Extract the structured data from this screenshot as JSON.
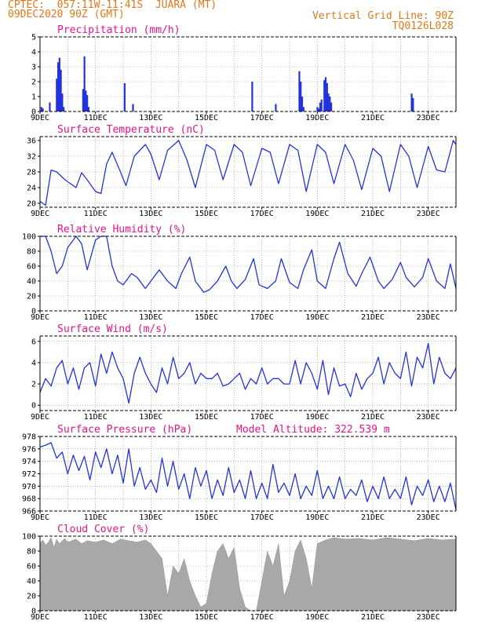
{
  "header": {
    "line1": "CPTEC:  057:11W-11:41S  JUARA (MT)",
    "line2": "09DEC2020 90Z (GMT)",
    "right1": "Vertical Grid Line: 90Z",
    "right2": "TQ0126L028"
  },
  "colors": {
    "header": "#e07818",
    "title": "#e8128a",
    "line": "#2233dd",
    "cloud": "#a8a8a8"
  },
  "chart_data": [
    {
      "type": "bar",
      "title": "Precipitation (mm/h)",
      "ylim": [
        0,
        5
      ],
      "yticks": [
        "0",
        "1",
        "2",
        "3",
        "4",
        "5"
      ],
      "xticks": [
        "9DEC",
        "11DEC",
        "13DEC",
        "15DEC",
        "17DEC",
        "19DEC",
        "21DEC",
        "23DEC"
      ],
      "x_range": [
        9,
        24
      ],
      "x": [
        9.05,
        9.1,
        9.35,
        9.6,
        9.65,
        9.7,
        9.75,
        9.8,
        9.85,
        10.55,
        10.6,
        10.65,
        10.7,
        10.75,
        12.05,
        12.35,
        16.65,
        17.5,
        18.35,
        18.4,
        18.45,
        18.5,
        19.0,
        19.05,
        19.1,
        19.15,
        19.25,
        19.3,
        19.35,
        19.4,
        19.45,
        19.5,
        22.4,
        22.45
      ],
      "values": [
        0.3,
        0.2,
        0.6,
        2.2,
        3.3,
        3.6,
        2.8,
        1.2,
        0.3,
        1.5,
        3.7,
        1.4,
        1.1,
        0.3,
        1.9,
        0.5,
        2.0,
        0.5,
        2.7,
        2.0,
        1.0,
        0.3,
        0.3,
        0.2,
        0.6,
        0.8,
        2.1,
        2.3,
        1.9,
        1.2,
        1.0,
        0.6,
        1.2,
        0.9
      ]
    },
    {
      "type": "line",
      "title": "Surface Temperature (nC)",
      "ylim": [
        19,
        37
      ],
      "yticks": [
        "20",
        "24",
        "28",
        "32",
        "36"
      ],
      "xticks": [
        "9DEC",
        "11DEC",
        "13DEC",
        "15DEC",
        "17DEC",
        "19DEC",
        "21DEC",
        "23DEC"
      ],
      "x": [
        9.0,
        9.2,
        9.4,
        9.6,
        9.9,
        10.3,
        10.5,
        10.7,
        11.0,
        11.2,
        11.4,
        11.6,
        11.9,
        12.1,
        12.4,
        12.8,
        13.0,
        13.3,
        13.6,
        14.0,
        14.3,
        14.6,
        15.0,
        15.3,
        15.6,
        16.0,
        16.3,
        16.6,
        17.0,
        17.3,
        17.6,
        18.0,
        18.3,
        18.6,
        19.0,
        19.3,
        19.6,
        20.0,
        20.3,
        20.6,
        21.0,
        21.3,
        21.6,
        22.0,
        22.3,
        22.6,
        23.0,
        23.3,
        23.6,
        23.9,
        24.0
      ],
      "values": [
        20.5,
        19.5,
        28.5,
        28.0,
        26.0,
        24.0,
        27.8,
        26.0,
        23.0,
        22.5,
        30.0,
        33.0,
        28.0,
        24.5,
        32.0,
        35.0,
        32.5,
        26.0,
        33.5,
        36.0,
        31.0,
        24.0,
        35.0,
        33.5,
        26.0,
        35.0,
        33.0,
        24.5,
        34.0,
        33.0,
        25.0,
        35.0,
        33.5,
        23.0,
        35.0,
        33.0,
        25.0,
        35.0,
        31.0,
        23.5,
        34.0,
        32.0,
        23.0,
        35.0,
        32.0,
        24.0,
        34.5,
        28.5,
        28.0,
        36.0,
        35.0
      ]
    },
    {
      "type": "line",
      "title": "Relative Humidity (%)",
      "ylim": [
        0,
        100
      ],
      "yticks": [
        "0",
        "20",
        "40",
        "60",
        "80",
        "100"
      ],
      "xticks": [
        "9DEC",
        "11DEC",
        "13DEC",
        "15DEC",
        "17DEC",
        "19DEC",
        "21DEC",
        "23DEC"
      ],
      "x": [
        9.0,
        9.2,
        9.4,
        9.6,
        9.8,
        10.0,
        10.3,
        10.5,
        10.7,
        11.0,
        11.2,
        11.4,
        11.6,
        11.8,
        12.0,
        12.3,
        12.5,
        12.8,
        13.0,
        13.3,
        13.6,
        13.9,
        14.1,
        14.4,
        14.6,
        14.9,
        15.1,
        15.4,
        15.7,
        15.9,
        16.1,
        16.4,
        16.7,
        16.9,
        17.2,
        17.5,
        17.7,
        18.0,
        18.3,
        18.5,
        18.8,
        19.0,
        19.3,
        19.6,
        19.8,
        20.1,
        20.4,
        20.6,
        20.9,
        21.2,
        21.4,
        21.7,
        22.0,
        22.2,
        22.5,
        22.8,
        23.0,
        23.3,
        23.6,
        23.8,
        24.0
      ],
      "values": [
        100,
        100,
        80,
        50,
        60,
        85,
        100,
        90,
        55,
        95,
        100,
        100,
        60,
        40,
        35,
        50,
        45,
        30,
        40,
        55,
        40,
        30,
        50,
        72,
        40,
        25,
        28,
        40,
        60,
        40,
        30,
        42,
        70,
        35,
        30,
        40,
        70,
        38,
        30,
        55,
        82,
        40,
        30,
        70,
        92,
        50,
        33,
        50,
        72,
        40,
        30,
        42,
        65,
        45,
        32,
        45,
        70,
        40,
        30,
        63,
        30
      ]
    },
    {
      "type": "line",
      "title": "Surface Wind (m/s)",
      "ylim": [
        -0.5,
        6.5
      ],
      "yticks": [
        "0",
        "2",
        "4",
        "6"
      ],
      "xticks": [
        "9DEC",
        "11DEC",
        "13DEC",
        "15DEC",
        "17DEC",
        "19DEC",
        "21DEC",
        "23DEC"
      ],
      "x": [
        9.0,
        9.2,
        9.4,
        9.6,
        9.8,
        10.0,
        10.2,
        10.4,
        10.6,
        10.8,
        11.0,
        11.2,
        11.4,
        11.6,
        11.8,
        12.0,
        12.2,
        12.4,
        12.6,
        12.8,
        13.0,
        13.2,
        13.4,
        13.6,
        13.8,
        14.0,
        14.2,
        14.4,
        14.6,
        14.8,
        15.0,
        15.2,
        15.4,
        15.6,
        15.8,
        16.0,
        16.2,
        16.4,
        16.6,
        16.8,
        17.0,
        17.2,
        17.4,
        17.6,
        17.8,
        18.0,
        18.2,
        18.4,
        18.6,
        18.8,
        19.0,
        19.2,
        19.4,
        19.6,
        19.8,
        20.0,
        20.2,
        20.4,
        20.6,
        20.8,
        21.0,
        21.2,
        21.4,
        21.6,
        21.8,
        22.0,
        22.2,
        22.4,
        22.6,
        22.8,
        23.0,
        23.2,
        23.4,
        23.6,
        23.8,
        24.0
      ],
      "values": [
        1.2,
        2.5,
        1.8,
        3.5,
        4.2,
        2.0,
        3.5,
        1.5,
        3.5,
        4.0,
        1.8,
        4.8,
        3.0,
        5.0,
        3.5,
        2.5,
        0.2,
        3.0,
        4.5,
        3.0,
        2.0,
        1.2,
        3.5,
        2.0,
        4.5,
        2.5,
        3.0,
        4.0,
        2.0,
        3.0,
        2.5,
        2.5,
        3.0,
        1.8,
        2.0,
        2.5,
        3.0,
        1.5,
        2.5,
        2.0,
        3.5,
        2.0,
        2.5,
        2.5,
        2.0,
        2.0,
        4.2,
        2.0,
        4.0,
        3.0,
        1.5,
        4.2,
        1.0,
        3.5,
        1.8,
        2.0,
        0.8,
        3.0,
        1.5,
        2.5,
        3.0,
        4.5,
        2.0,
        4.0,
        3.0,
        2.5,
        5.0,
        1.8,
        4.5,
        3.5,
        5.8,
        2.0,
        4.5,
        3.0,
        2.5,
        3.5
      ]
    },
    {
      "type": "line",
      "title": "Surface Pressure (hPa)",
      "subtitle": "Model Altitude: 322.539 m",
      "ylim": [
        966,
        978
      ],
      "yticks": [
        "966",
        "968",
        "970",
        "972",
        "974",
        "976",
        "978"
      ],
      "xticks": [
        "9DEC",
        "11DEC",
        "13DEC",
        "15DEC",
        "17DEC",
        "19DEC",
        "21DEC",
        "23DEC"
      ],
      "x": [
        9.0,
        9.2,
        9.4,
        9.6,
        9.8,
        10.0,
        10.2,
        10.4,
        10.6,
        10.8,
        11.0,
        11.2,
        11.4,
        11.6,
        11.8,
        12.0,
        12.2,
        12.4,
        12.6,
        12.8,
        13.0,
        13.2,
        13.4,
        13.6,
        13.8,
        14.0,
        14.2,
        14.4,
        14.6,
        14.8,
        15.0,
        15.2,
        15.4,
        15.6,
        15.8,
        16.0,
        16.2,
        16.4,
        16.6,
        16.8,
        17.0,
        17.2,
        17.4,
        17.6,
        17.8,
        18.0,
        18.2,
        18.4,
        18.6,
        18.8,
        19.0,
        19.2,
        19.4,
        19.6,
        19.8,
        20.0,
        20.2,
        20.4,
        20.6,
        20.8,
        21.0,
        21.2,
        21.4,
        21.6,
        21.8,
        22.0,
        22.2,
        22.4,
        22.6,
        22.8,
        23.0,
        23.2,
        23.4,
        23.6,
        23.8,
        24.0
      ],
      "values": [
        976.3,
        976.6,
        977.0,
        974.5,
        975.5,
        972.0,
        975.0,
        972.5,
        974.8,
        971.0,
        975.5,
        973.0,
        976.0,
        972.0,
        975.0,
        970.5,
        976.0,
        970.0,
        973.0,
        969.5,
        971.0,
        969.0,
        974.5,
        970.0,
        974.0,
        969.5,
        972.0,
        968.0,
        973.0,
        970.0,
        972.5,
        968.0,
        971.0,
        968.5,
        973.0,
        969.0,
        971.0,
        968.0,
        972.5,
        968.0,
        970.5,
        968.0,
        973.5,
        969.0,
        970.5,
        968.5,
        972.0,
        968.0,
        970.0,
        968.5,
        972.5,
        968.0,
        970.0,
        968.0,
        971.5,
        968.0,
        969.5,
        968.5,
        971.0,
        967.5,
        970.0,
        968.0,
        971.5,
        968.0,
        969.5,
        968.0,
        971.5,
        967.0,
        970.0,
        968.5,
        971.0,
        967.5,
        970.0,
        967.5,
        970.5,
        966.2
      ]
    },
    {
      "type": "area",
      "title": "Cloud Cover (%)",
      "ylim": [
        0,
        100
      ],
      "yticks": [
        "0",
        "20",
        "40",
        "60",
        "80",
        "100"
      ],
      "xticks": [
        "9DEC",
        "11DEC",
        "13DEC",
        "15DEC",
        "17DEC",
        "19DEC",
        "21DEC",
        "23DEC"
      ],
      "x": [
        9.0,
        9.1,
        9.2,
        9.3,
        9.4,
        9.5,
        9.6,
        9.7,
        9.8,
        9.9,
        10.0,
        10.3,
        10.5,
        10.7,
        11.0,
        11.3,
        11.6,
        11.9,
        12.2,
        12.5,
        12.8,
        13.0,
        13.2,
        13.4,
        13.6,
        13.8,
        14.0,
        14.2,
        14.4,
        14.6,
        14.8,
        15.0,
        15.2,
        15.4,
        15.6,
        15.8,
        16.0,
        16.2,
        16.4,
        16.6,
        16.8,
        17.0,
        17.2,
        17.4,
        17.6,
        17.8,
        18.0,
        18.2,
        18.4,
        18.6,
        18.8,
        19.0,
        19.3,
        19.6,
        20.0,
        20.5,
        21.0,
        21.5,
        22.0,
        22.5,
        23.0,
        23.5,
        24.0
      ],
      "values": [
        90,
        95,
        88,
        92,
        98,
        85,
        96,
        90,
        94,
        97,
        92,
        96,
        90,
        94,
        92,
        95,
        90,
        96,
        94,
        92,
        95,
        90,
        80,
        70,
        20,
        60,
        50,
        70,
        40,
        20,
        5,
        10,
        50,
        80,
        90,
        70,
        85,
        30,
        5,
        0,
        0,
        40,
        80,
        60,
        90,
        20,
        40,
        80,
        95,
        70,
        30,
        90,
        95,
        98,
        96,
        97,
        95,
        98,
        96,
        94,
        97,
        95,
        96
      ]
    }
  ]
}
